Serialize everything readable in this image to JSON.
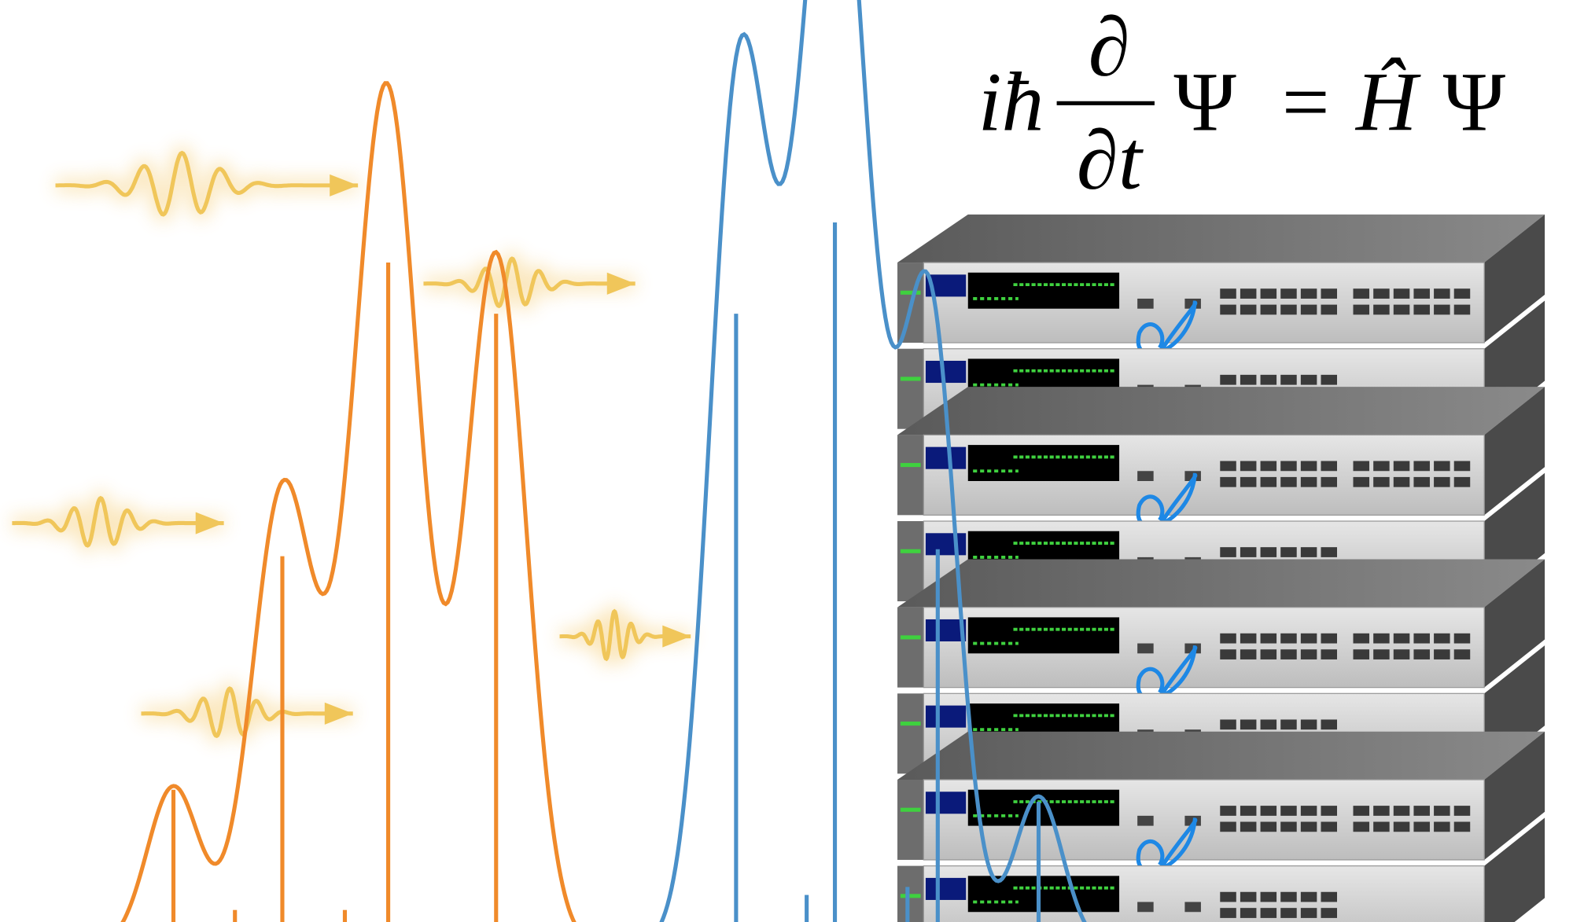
{
  "equation": {
    "lhs_factor": "iħ",
    "numerator": "∂",
    "denominator": "∂t",
    "lhs_psi": "Ψ",
    "equals": "=",
    "operator": "Ĥ",
    "rhs_psi": "Ψ"
  }
}
